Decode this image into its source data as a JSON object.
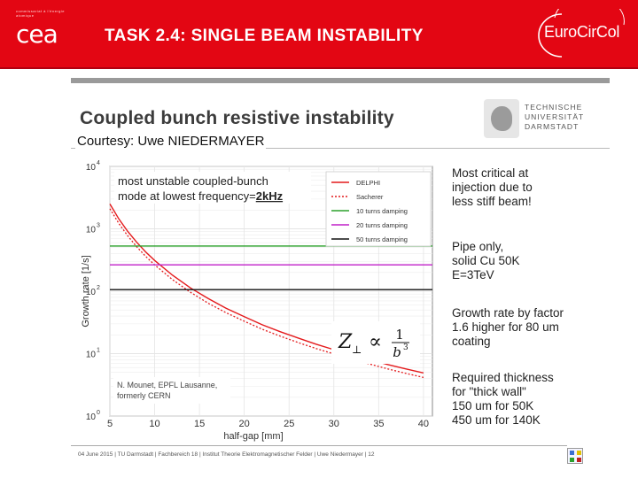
{
  "header": {
    "org_logo_small": "commissariat à l'énergie atomique",
    "org_logo": "cea",
    "title": "TASK 2.4: SINGLE BEAM INSTABILITY",
    "project_logo": "EuroCirCol"
  },
  "inner_slide": {
    "title": "Coupled bunch resistive instability",
    "university_logo": [
      "TECHNISCHE",
      "UNIVERSITÄT",
      "DARMSTADT"
    ],
    "courtesy": "Courtesy: Uwe NIEDERMAYER"
  },
  "notes": [
    [
      "Most critical at",
      "injection due to",
      "less stiff beam!"
    ],
    [
      "Pipe only,",
      "solid Cu 50K",
      "E=3TeV"
    ],
    [
      "Growth rate by factor",
      "1.6 higher for 80 um",
      "coating"
    ],
    [
      "Required thickness",
      "for \"thick wall\"",
      "150 um for 50K",
      "450 um for 140K"
    ]
  ],
  "footer": {
    "text": "04 June 2015  |  TU Darmstadt  |  Fachbereich 18  |  Institut Theorie Elektromagnetischer Felder  |  Uwe Niedermayer  |  12"
  },
  "chart_data": {
    "type": "line",
    "title": "",
    "xlabel": "half-gap [mm]",
    "ylabel": "Growth rate [1/s]",
    "xlim": [
      5,
      41
    ],
    "ylim_log10": [
      0,
      4
    ],
    "x_ticks": [
      "5",
      "10",
      "15",
      "20",
      "25",
      "30",
      "35",
      "40"
    ],
    "x_tick_values": [
      5,
      10,
      15,
      20,
      25,
      30,
      35,
      40
    ],
    "y_ticks": [
      {
        "base": "10",
        "exp": "0"
      },
      {
        "base": "10",
        "exp": "1"
      },
      {
        "base": "10",
        "exp": "2"
      },
      {
        "base": "10",
        "exp": "3"
      },
      {
        "base": "10",
        "exp": "4"
      }
    ],
    "annotation_line1": "most unstable coupled-bunch",
    "annotation_line2_prefix": "mode at lowest frequency=",
    "annotation_freq": "2kHz",
    "formula": "Z⊥ ∝ 1/b³",
    "formula_lhs": "Z",
    "formula_sub": "⊥",
    "formula_prop": "∝",
    "formula_num": "1",
    "formula_den": "b",
    "formula_den_exp": "3",
    "credit": [
      "N. Mounet, EPFL Lausanne,",
      "formerly CERN"
    ],
    "series": [
      {
        "name": "DELPHI",
        "color": "#e41a1c",
        "style": "solid",
        "x": [
          5,
          6,
          7,
          8,
          9,
          10,
          12,
          14,
          16,
          18,
          20,
          22,
          24,
          26,
          28,
          30,
          32,
          34,
          36,
          38,
          40
        ],
        "y": [
          2500,
          1440,
          907,
          608,
          427,
          311,
          180,
          113,
          76,
          53,
          39,
          29,
          22.5,
          17.8,
          14.2,
          11.6,
          9.6,
          8.0,
          6.7,
          5.7,
          4.9
        ]
      },
      {
        "name": "Sacherer",
        "color": "#e41a1c",
        "style": "dotted",
        "x": [
          5,
          6,
          7,
          8,
          9,
          10,
          12,
          14,
          16,
          18,
          20,
          22,
          24,
          26,
          28,
          30,
          32,
          34,
          36,
          38,
          40
        ],
        "y": [
          2100,
          1220,
          770,
          515,
          362,
          264,
          153,
          96,
          64,
          45,
          33,
          24.6,
          19.1,
          15.1,
          12.1,
          9.9,
          8.2,
          6.8,
          5.7,
          4.85,
          4.15
        ]
      },
      {
        "name": "10 turns damping",
        "color": "#2ca02c",
        "style": "solid",
        "x": [
          5,
          41
        ],
        "y": [
          530,
          530
        ]
      },
      {
        "name": "20 turns damping",
        "color": "#c020c8",
        "style": "solid",
        "x": [
          5,
          41
        ],
        "y": [
          265,
          265
        ]
      },
      {
        "name": "50 turns damping",
        "color": "#111111",
        "style": "solid",
        "x": [
          5,
          41
        ],
        "y": [
          106,
          106
        ]
      }
    ],
    "legend_position": "top-right"
  }
}
